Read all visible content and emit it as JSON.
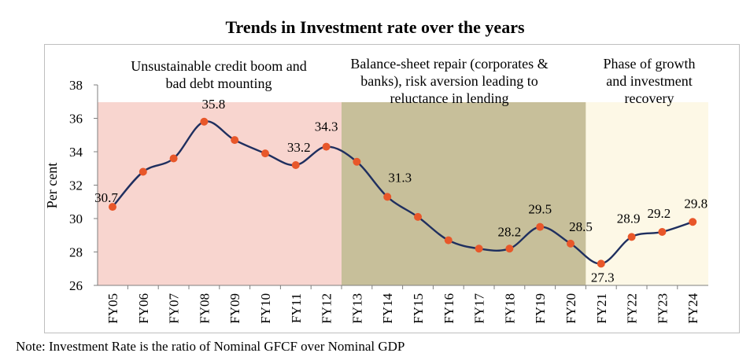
{
  "chart_data": {
    "type": "line",
    "title": "Trends in Investment rate over the years",
    "ylabel": "Per cent",
    "xlabel": "",
    "ylim": [
      26,
      38
    ],
    "yticks": [
      26,
      28,
      30,
      32,
      34,
      36,
      38
    ],
    "categories": [
      "FY05",
      "FY06",
      "FY07",
      "FY08",
      "FY09",
      "FY10",
      "FY11",
      "FY12",
      "FY13",
      "FY14",
      "FY15",
      "FY16",
      "FY17",
      "FY18",
      "FY19",
      "FY20",
      "FY21",
      "FY22",
      "FY23",
      "FY24"
    ],
    "series": [
      {
        "name": "Investment rate",
        "color": "#1f2f5f",
        "marker_color": "#e8572a",
        "values": [
          30.7,
          32.8,
          33.6,
          35.8,
          34.7,
          33.9,
          33.2,
          34.3,
          33.4,
          31.3,
          30.1,
          28.7,
          28.2,
          28.2,
          29.5,
          28.5,
          27.3,
          28.9,
          29.2,
          29.8
        ],
        "data_labels": [
          {
            "index": 0,
            "text": "30.7"
          },
          {
            "index": 3,
            "text": "35.8"
          },
          {
            "index": 6,
            "text": "33.2"
          },
          {
            "index": 7,
            "text": "34.3"
          },
          {
            "index": 9,
            "text": "31.3"
          },
          {
            "index": 13,
            "text": "28.2"
          },
          {
            "index": 14,
            "text": "29.5"
          },
          {
            "index": 15,
            "text": "28.5"
          },
          {
            "index": 16,
            "text": "27.3"
          },
          {
            "index": 17,
            "text": "28.9"
          },
          {
            "index": 18,
            "text": "29.2"
          },
          {
            "index": 19,
            "text": "29.8"
          }
        ]
      }
    ],
    "phases": [
      {
        "name": "boom",
        "start": "FY05",
        "end": "FY12",
        "color": "#f8d5cf",
        "label_lines": [
          "Unsustainable credit boom and",
          "bad debt mounting"
        ]
      },
      {
        "name": "repair",
        "start": "FY13",
        "end": "FY20",
        "color": "#c7bf9a",
        "label_lines": [
          "Balance-sheet repair (corporates &",
          "banks),  risk aversion leading to",
          "reluctance in lending"
        ]
      },
      {
        "name": "recovery",
        "start": "FY21",
        "end": "FY24",
        "color": "#fdf8e6",
        "label_lines": [
          "Phase of growth",
          "and investment",
          "recovery"
        ]
      }
    ]
  },
  "footnote": "Note: Investment Rate is the ratio of Nominal GFCF over Nominal GDP"
}
